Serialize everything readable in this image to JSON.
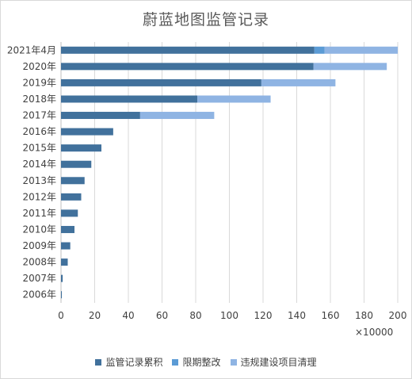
{
  "chart_data": {
    "type": "bar",
    "orientation": "horizontal",
    "stacked": true,
    "title": "蔚蓝地图监管记录",
    "x_unit": "×10000",
    "categories": [
      "2021年4月",
      "2020年",
      "2019年",
      "2018年",
      "2017年",
      "2016年",
      "2015年",
      "2014年",
      "2013年",
      "2012年",
      "2011年",
      "2010年",
      "2009年",
      "2008年",
      "2007年",
      "2006年"
    ],
    "series": [
      {
        "name": "监管记录累积",
        "color": "#41719c",
        "values": [
          150.5,
          150,
          119,
          81,
          47,
          31,
          24,
          18,
          14,
          12,
          10,
          8,
          5.5,
          4,
          1,
          0.5
        ]
      },
      {
        "name": "限期整改",
        "color": "#5b9bd5",
        "values": [
          6,
          0,
          0,
          0,
          0,
          0,
          0,
          0,
          0,
          0,
          0,
          0,
          0,
          0,
          0,
          0
        ]
      },
      {
        "name": "违规建设项目清理",
        "color": "#8fb4e3",
        "values": [
          43.5,
          43.5,
          44,
          43.5,
          44,
          0,
          0,
          0,
          0,
          0,
          0,
          0,
          0,
          0,
          0,
          0
        ]
      }
    ],
    "xlim": [
      0,
      200
    ],
    "xticks": [
      "0",
      "20",
      "40",
      "60",
      "80",
      "100",
      "120",
      "140",
      "160",
      "180",
      "200"
    ],
    "grid": true,
    "legend_position": "bottom"
  }
}
